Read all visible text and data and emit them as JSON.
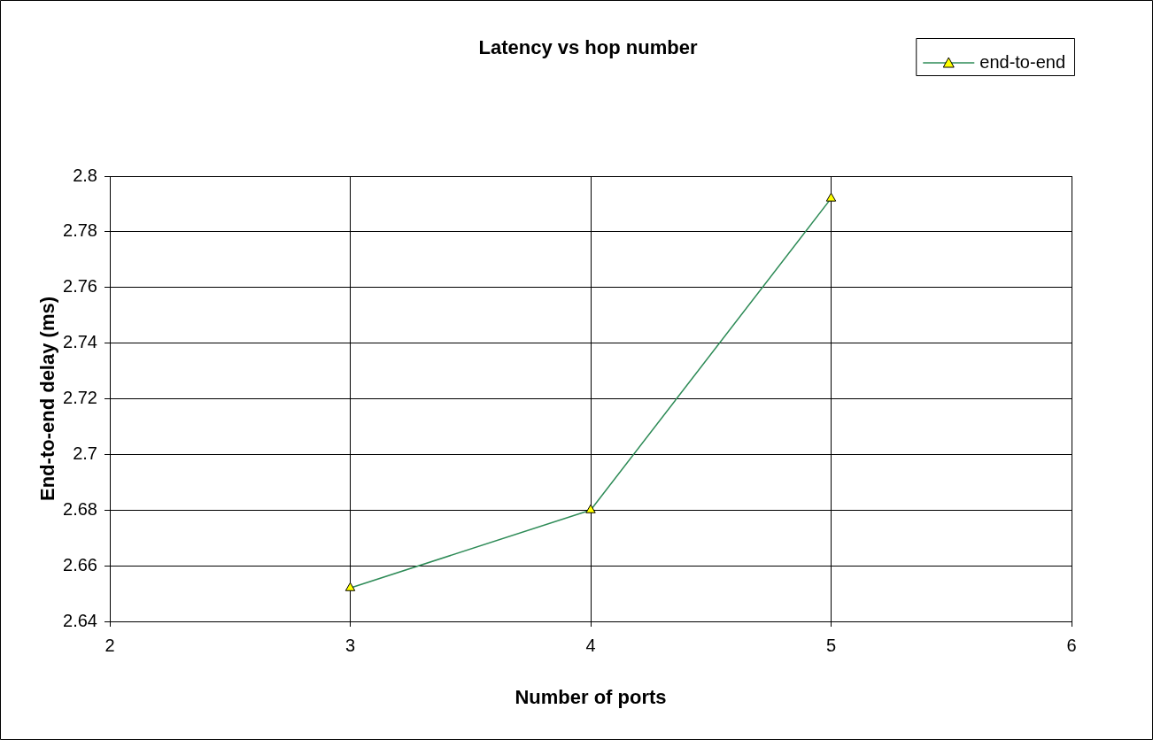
{
  "chart_data": {
    "type": "line",
    "title": "Latency vs hop number",
    "xlabel": "Number of ports",
    "ylabel": "End-to-end delay (ms)",
    "x": [
      3,
      4,
      5
    ],
    "series": [
      {
        "name": "end-to-end",
        "color": "#2e8b57",
        "values": [
          2.652,
          2.68,
          2.792
        ]
      }
    ],
    "xlim": [
      2,
      6
    ],
    "xticks": [
      2,
      3,
      4,
      5,
      6
    ],
    "ylim": [
      2.64,
      2.8
    ],
    "yticks": [
      2.64,
      2.66,
      2.68,
      2.7,
      2.72,
      2.74,
      2.76,
      2.78,
      2.8
    ],
    "grid": true,
    "legend": "top right",
    "marker": "triangle",
    "line_style": "solid"
  }
}
